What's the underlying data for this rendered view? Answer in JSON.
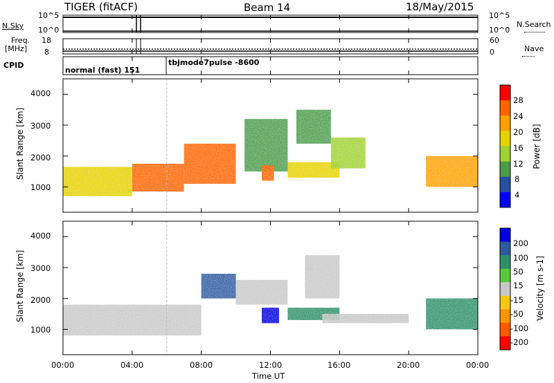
{
  "header": {
    "title_left": "TIGER (fitACF)",
    "title_center": "Beam 14",
    "title_right": "18/May/2015"
  },
  "panels": {
    "nsky": {
      "label": "N.Sky",
      "ticks_left": [
        "10^5",
        "10^0"
      ],
      "ticks_right": [
        "10^5",
        "10^0"
      ],
      "label_right": "N.Search"
    },
    "freq": {
      "label_top": "Freq.",
      "label_unit": "[MHz]",
      "ticks_left": [
        "18",
        "8"
      ],
      "ticks_right": [
        "60",
        "0"
      ],
      "label_right": "Nave"
    },
    "cpid": {
      "label": "CPID",
      "mode1": "normal (fast) 151",
      "mode2": "tbjmode7pulse -8600"
    }
  },
  "power_panel": {
    "ylabel": "Slant Range [km]",
    "cbar_label": "Power [dB]",
    "cbar_ticks": [
      "28",
      "24",
      "20",
      "16",
      "12",
      "8",
      "4"
    ],
    "cbar_colors": [
      "#ff0000",
      "#ff6400",
      "#ffa000",
      "#e6d200",
      "#a0d232",
      "#4b9b4b",
      "#2850a0",
      "#0000ff"
    ]
  },
  "velocity_panel": {
    "ylabel": "Slant Range [km]",
    "cbar_label": "Velocity [m s-1]",
    "cbar_ticks": [
      "200",
      "100",
      "50",
      "15",
      "-15",
      "-50",
      "-100",
      "-200"
    ],
    "cbar_colors": [
      "#0000e0",
      "#2d5aa0",
      "#2f8f6a",
      "#5ac83c",
      "#c8c8c8",
      "#f5c814",
      "#ff9600",
      "#ff5a00",
      "#ff0000"
    ]
  },
  "axes": {
    "xlabel": "Time UT",
    "x_ticks": [
      "00:00",
      "04:00",
      "08:00",
      "12:00",
      "16:00",
      "20:00",
      "00:00"
    ],
    "y_ticks": [
      "4000",
      "3000",
      "2000",
      "1000"
    ]
  },
  "chart_data": {
    "type": "heatmap",
    "x_unit": "hours UT",
    "xlim": [
      0,
      24
    ],
    "ylim": [
      180,
      4500
    ],
    "power": {
      "colorbar_range": [
        0,
        30
      ],
      "regions": [
        {
          "t": [
            0,
            4
          ],
          "range": [
            700,
            1650
          ],
          "value": 18
        },
        {
          "t": [
            4,
            7
          ],
          "range": [
            850,
            1750
          ],
          "value": 24
        },
        {
          "t": [
            7,
            10
          ],
          "range": [
            1100,
            2400
          ],
          "value": 26
        },
        {
          "t": [
            10.5,
            13
          ],
          "range": [
            1500,
            3200
          ],
          "value": 8
        },
        {
          "t": [
            11.5,
            12.2
          ],
          "range": [
            1200,
            1700
          ],
          "value": 26
        },
        {
          "t": [
            13,
            16
          ],
          "range": [
            1300,
            1800
          ],
          "value": 18
        },
        {
          "t": [
            13.5,
            15.5
          ],
          "range": [
            2400,
            3500
          ],
          "value": 8
        },
        {
          "t": [
            15.5,
            17.5
          ],
          "range": [
            1600,
            2600
          ],
          "value": 14
        },
        {
          "t": [
            21,
            24
          ],
          "range": [
            1000,
            2000
          ],
          "value": 20
        }
      ]
    },
    "velocity": {
      "colorbar_range": [
        -250,
        250
      ],
      "regions": [
        {
          "t": [
            0,
            8
          ],
          "range": [
            800,
            1800
          ],
          "value": 0
        },
        {
          "t": [
            8,
            10
          ],
          "range": [
            2000,
            2800
          ],
          "value": 120
        },
        {
          "t": [
            10,
            13
          ],
          "range": [
            1800,
            2600
          ],
          "value": 0
        },
        {
          "t": [
            11.5,
            12.5
          ],
          "range": [
            1200,
            1700
          ],
          "value": 220
        },
        {
          "t": [
            13,
            16
          ],
          "range": [
            1300,
            1700
          ],
          "value": 60
        },
        {
          "t": [
            14,
            16
          ],
          "range": [
            2000,
            3400
          ],
          "value": 0
        },
        {
          "t": [
            15,
            20
          ],
          "range": [
            1200,
            1500
          ],
          "value": -10
        },
        {
          "t": [
            21,
            24
          ],
          "range": [
            1000,
            2000
          ],
          "value": 50
        }
      ]
    }
  }
}
